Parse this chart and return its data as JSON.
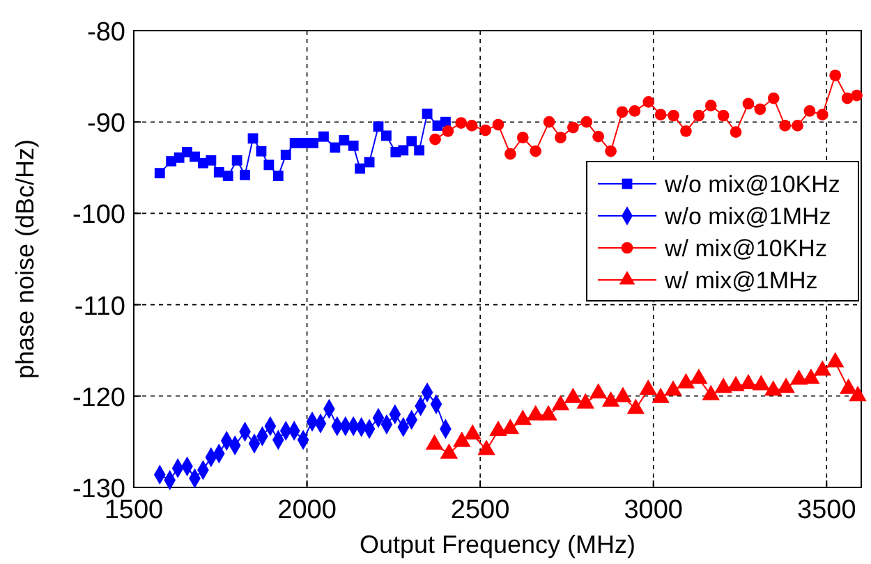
{
  "chart_data": {
    "type": "line",
    "xlabel": "Output Frequency (MHz)",
    "ylabel": "phase noise (dBc/Hz)",
    "xlim": [
      1500,
      3600
    ],
    "xticks": [
      1500,
      2000,
      2500,
      3000,
      3500
    ],
    "ylim": [
      -130,
      -80
    ],
    "yticks": [
      -130,
      -120,
      -110,
      -100,
      -90,
      -80
    ],
    "grid": true,
    "legend": "right",
    "line_style": "solid",
    "series": [
      {
        "name": "w/o mix@10KHz",
        "color": "#0000ff",
        "marker": "square",
        "x": [
          1575,
          1608,
          1631,
          1654,
          1676,
          1700,
          1723,
          1746,
          1772,
          1798,
          1821,
          1844,
          1868,
          1890,
          1917,
          1939,
          1965,
          1991,
          2018,
          2048,
          2081,
          2107,
          2134,
          2153,
          2180,
          2206,
          2229,
          2256,
          2278,
          2302,
          2324,
          2347,
          2377,
          2400
        ],
        "values": [
          -95.6,
          -94.3,
          -93.9,
          -93.3,
          -93.8,
          -94.5,
          -94.2,
          -95.5,
          -95.9,
          -94.2,
          -95.8,
          -91.8,
          -93.2,
          -94.7,
          -95.9,
          -93.6,
          -92.3,
          -92.3,
          -92.3,
          -91.6,
          -92.8,
          -92.0,
          -92.6,
          -95.1,
          -94.4,
          -90.5,
          -91.5,
          -93.3,
          -93.1,
          -92.1,
          -93.1,
          -89.1,
          -90.4,
          -90.0
        ]
      },
      {
        "name": "w/o mix@1MHz",
        "color": "#0000ff",
        "marker": "diamond",
        "x": [
          1575,
          1604,
          1627,
          1654,
          1676,
          1700,
          1723,
          1746,
          1768,
          1792,
          1821,
          1848,
          1871,
          1894,
          1917,
          1939,
          1963,
          1989,
          2015,
          2039,
          2064,
          2087,
          2111,
          2134,
          2157,
          2180,
          2206,
          2230,
          2254,
          2278,
          2302,
          2328,
          2347,
          2373,
          2400
        ],
        "values": [
          -128.6,
          -129.2,
          -127.9,
          -127.7,
          -129.0,
          -128.1,
          -126.7,
          -126.3,
          -124.9,
          -125.4,
          -123.9,
          -125.2,
          -124.4,
          -123.3,
          -124.8,
          -123.8,
          -123.8,
          -124.8,
          -122.8,
          -123.0,
          -121.4,
          -123.3,
          -123.3,
          -123.3,
          -123.4,
          -123.6,
          -122.4,
          -123.1,
          -122.0,
          -123.4,
          -122.6,
          -121.1,
          -119.6,
          -120.9,
          -123.6
        ]
      },
      {
        "name": "w/ mix@10KHz",
        "color": "#ff0000",
        "marker": "circle",
        "x": [
          2370,
          2407,
          2445,
          2476,
          2515,
          2552,
          2587,
          2623,
          2660,
          2699,
          2732,
          2768,
          2807,
          2841,
          2877,
          2910,
          2946,
          2986,
          3021,
          3058,
          3094,
          3131,
          3166,
          3202,
          3238,
          3274,
          3308,
          3347,
          3380,
          3416,
          3451,
          3488,
          3525,
          3560,
          3587
        ],
        "values": [
          -91.9,
          -91.0,
          -90.1,
          -90.4,
          -90.9,
          -90.3,
          -93.5,
          -91.7,
          -93.2,
          -90.0,
          -91.7,
          -90.6,
          -90.0,
          -91.6,
          -93.2,
          -88.9,
          -88.8,
          -87.8,
          -89.2,
          -89.3,
          -91.0,
          -89.3,
          -88.2,
          -89.3,
          -91.1,
          -88.0,
          -88.6,
          -87.4,
          -90.4,
          -90.4,
          -88.8,
          -89.2,
          -84.9,
          -87.4,
          -87.1
        ]
      },
      {
        "name": "w/ mix@1MHz",
        "color": "#ff0000",
        "marker": "triangle",
        "x": [
          2368,
          2410,
          2447,
          2478,
          2518,
          2552,
          2587,
          2623,
          2660,
          2697,
          2732,
          2768,
          2804,
          2841,
          2877,
          2912,
          2949,
          2985,
          3021,
          3057,
          3094,
          3131,
          3166,
          3202,
          3238,
          3274,
          3311,
          3346,
          3383,
          3420,
          3455,
          3488,
          3525,
          3563,
          3590
        ],
        "values": [
          -125.3,
          -126.3,
          -125.0,
          -124.2,
          -125.9,
          -123.8,
          -123.6,
          -122.6,
          -122.1,
          -122.1,
          -121.0,
          -120.2,
          -120.8,
          -119.7,
          -120.6,
          -120.1,
          -121.4,
          -119.3,
          -120.2,
          -119.4,
          -118.6,
          -118.1,
          -119.9,
          -119.1,
          -118.9,
          -118.7,
          -118.8,
          -119.4,
          -119.1,
          -118.2,
          -118.1,
          -117.2,
          -116.3,
          -119.2,
          -120.0
        ]
      }
    ]
  }
}
